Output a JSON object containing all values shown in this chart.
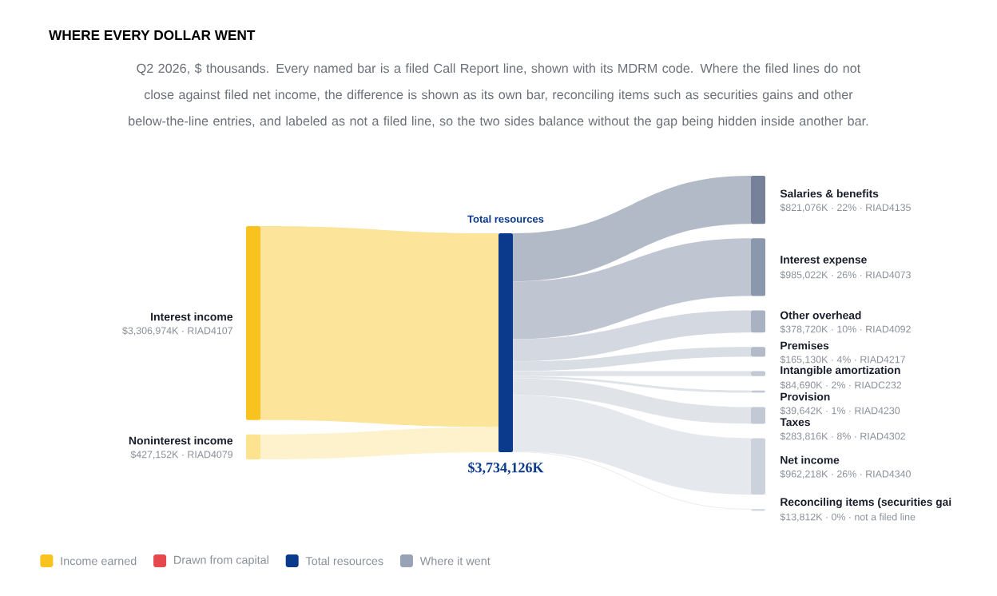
{
  "chart_data": {
    "type": "other",
    "title": "WHERE EVERY DOLLAR WENT",
    "subtitle": "Q2 2026, $ thousands. Every named bar is a filed Call Report line, shown with its MDRM code. Where the filed lines do not close against filed net income, the difference is shown as its own bar, reconciling items such as securities gains and other below-the-line entries, and labeled as not a filed line, so the two sides balance without the gap being hidden inside another bar.",
    "legend": "bottom",
    "categories": [
      "Interest income",
      "Noninterest income",
      "Total resources",
      "Salaries & benefits",
      "Interest expense",
      "Other overhead",
      "Premises",
      "Intangible amortization",
      "Provision",
      "Taxes",
      "Net income",
      "Reconciling items (securities gai"
    ],
    "colors": [
      "#f9c31f",
      "#fde38f",
      "#0b3a8c",
      "#76829a",
      "#8b97ad",
      "#a9b2c2",
      "#b3bbc9",
      "#c2c9d4",
      "#c2c9d4",
      "#c2c9d4",
      "#cbd2dc",
      "#d5dae2"
    ],
    "annotations": [
      "· RIAD4107",
      "· RIAD4079",
      "· 22% · RIAD4135",
      "· 26% · RIAD4073",
      "· 10% · RIAD4092",
      "· 4% · RIAD4217",
      "· 2% · RIADC232",
      "· 1% · RIAD4230",
      "· 8% · RIAD4302",
      "· 26% · RIAD4340",
      "· 0% · not a filed line"
    ],
    "series": [
      {
        "name": "Income earned",
        "color": "#f9c31f",
        "values": [
          3306974,
          427152,
          null,
          null,
          null,
          null,
          null,
          null,
          null,
          null,
          null,
          null
        ],
        "value_labels": [
          "$3,306,974K",
          "$427,152K",
          null,
          null,
          null,
          null,
          null,
          null,
          null,
          null,
          null,
          null
        ]
      },
      {
        "name": "Drawn from capital",
        "color": "#e5484d",
        "values": [
          null,
          null,
          null,
          null,
          null,
          null,
          null,
          null,
          null,
          null,
          null,
          null
        ]
      },
      {
        "name": "Total resources",
        "color": "#0b3a8c",
        "values": [
          null,
          null,
          3734126,
          null,
          null,
          null,
          null,
          null,
          null,
          null,
          null,
          null
        ],
        "value_labels": [
          null,
          null,
          "$3,734,126K",
          null,
          null,
          null,
          null,
          null,
          null,
          null,
          null,
          null
        ]
      },
      {
        "name": "Where it went",
        "color": "#98a2b6",
        "values": [
          null,
          null,
          null,
          821076,
          985022,
          378720,
          165130,
          84690,
          39642,
          283816,
          962218,
          13812
        ],
        "value_labels": [
          null,
          null,
          null,
          "$821,076K",
          "$985,022K",
          "$378,720K",
          "$165,130K",
          "$84,690K",
          "$39,642K",
          "$283,816K",
          "$962,218K",
          "$13,812K"
        ]
      }
    ]
  }
}
